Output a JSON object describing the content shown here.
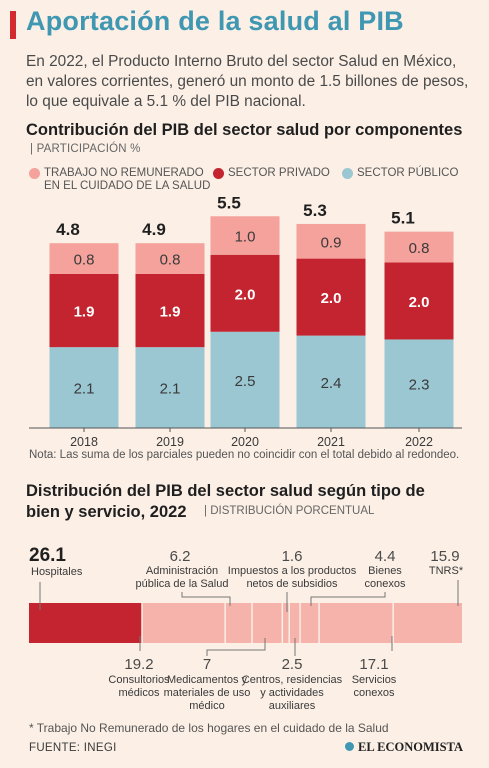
{
  "header": {
    "title": "Aportación de la salud al PIB",
    "intro": "En 2022, el Producto Interno Bruto del sector Salud en México, en valores corrientes, generó un monto de 1.5 billones de pesos, lo que equivale a 5.1 % del PIB nacional."
  },
  "section1": {
    "title": "Contribución del PIB del sector salud por componentes",
    "subtitle": "PARTICIPACIÓN %",
    "legend": [
      {
        "label": "TRABAJO NO REMUNERADO EN EL CUIDADO DE LA SALUD",
        "color": "#f4a29b"
      },
      {
        "label": "SECTOR PRIVADO",
        "color": "#c3242f"
      },
      {
        "label": "SECTOR PÚBLICO",
        "color": "#9bc7d3"
      }
    ],
    "note": "Nota: Las suma de los parciales pueden no coincidir con el total debido al redondeo."
  },
  "section2": {
    "title": "Distribución del PIB del sector salud según tipo de bien y servicio, 2022",
    "subtitle": "DISTRIBUCIÓN PORCENTUAL"
  },
  "chart_data": [
    {
      "type": "bar",
      "stacked": true,
      "title": "Contribución del PIB del sector salud por componentes",
      "categories": [
        "2018",
        "2019",
        "2020",
        "2021",
        "2022"
      ],
      "series": [
        {
          "name": "SECTOR PÚBLICO",
          "values": [
            2.1,
            2.1,
            2.5,
            2.4,
            2.3
          ],
          "color": "#9bc7d3"
        },
        {
          "name": "SECTOR PRIVADO",
          "values": [
            1.9,
            1.9,
            2.0,
            2.0,
            2.0
          ],
          "color": "#c3242f"
        },
        {
          "name": "TRABAJO NO REMUNERADO EN EL CUIDADO DE LA SALUD",
          "values": [
            0.8,
            0.8,
            1.0,
            0.9,
            0.8
          ],
          "color": "#f4a29b"
        }
      ],
      "totals": [
        4.8,
        4.9,
        5.5,
        5.3,
        5.1
      ],
      "value_labels": [
        [
          "2.1",
          "1.9",
          "0.8"
        ],
        [
          "2.1",
          "1.9",
          "0.8"
        ],
        [
          "2.5",
          "2.0",
          "1.0"
        ],
        [
          "2.4",
          "2.0",
          "0.9"
        ],
        [
          "2.3",
          "2.0",
          "0.8"
        ]
      ],
      "total_labels": [
        "4.8",
        "4.9",
        "5.5",
        "5.3",
        "5.1"
      ],
      "ylim": [
        0,
        5.5
      ],
      "grid": false,
      "legend_position": "top"
    },
    {
      "type": "bar",
      "stacked": true,
      "orientation": "horizontal",
      "title": "Distribución del PIB del sector salud según tipo de bien y servicio, 2022",
      "segments": [
        {
          "label": "Hospitales",
          "value": 26.1,
          "value_label": "26.1",
          "highlight": true
        },
        {
          "label": "Consultorios médicos",
          "value": 19.2,
          "value_label": "19.2"
        },
        {
          "label": "Administración pública de la Salud",
          "value": 6.2,
          "value_label": "6.2"
        },
        {
          "label": "Medicamentos y materiales de uso médico",
          "value": 7,
          "value_label": "7"
        },
        {
          "label": "Impuestos a los productos netos de subsidios",
          "value": 1.6,
          "value_label": "1.6"
        },
        {
          "label": "Centros, residencias y actividades auxiliares",
          "value": 2.5,
          "value_label": "2.5"
        },
        {
          "label": "Bienes conexos",
          "value": 4.4,
          "value_label": "4.4"
        },
        {
          "label": "Servicios conexos",
          "value": 17.1,
          "value_label": "17.1"
        },
        {
          "label": "TNRS*",
          "value": 15.9,
          "value_label": "15.9"
        }
      ],
      "colors": {
        "highlight": "#c3242f",
        "base": "#f6b3ab",
        "divider": "#fbefe6",
        "leader": "#777777"
      }
    }
  ],
  "footer": {
    "footnote": "* Trabajo No Remunerado de los hogares en el cuidado de la Salud",
    "source": "FUENTE: INEGI",
    "brand": "EL ECONOMISTA"
  }
}
